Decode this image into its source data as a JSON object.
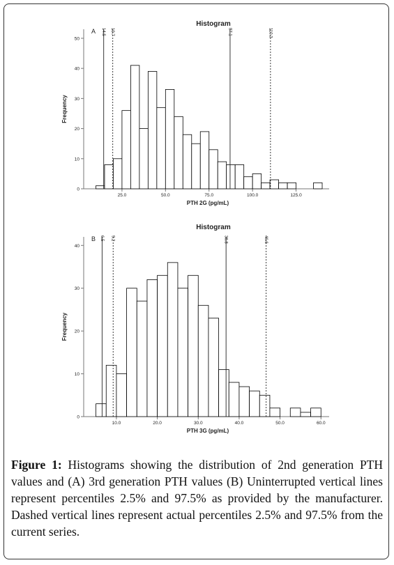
{
  "chart_data": [
    {
      "type": "histogram",
      "title": "Histogram",
      "panel": "A",
      "xlabel": "PTH 2G (pg/mL)",
      "ylabel": "Frequency",
      "bins": [
        10,
        15,
        20,
        25,
        30,
        35,
        40,
        45,
        50,
        55,
        60,
        65,
        70,
        75,
        80,
        85,
        90,
        95,
        100,
        105,
        110,
        115,
        120,
        125,
        130,
        135,
        140
      ],
      "counts": [
        1,
        8,
        10,
        26,
        41,
        20,
        39,
        27,
        33,
        24,
        18,
        15,
        19,
        13,
        9,
        8,
        8,
        4,
        5,
        2,
        3,
        2,
        2,
        0,
        0,
        2
      ],
      "color": "#ffffff",
      "edgecolor": "#000000",
      "xlim": [
        3,
        144
      ],
      "ylim": [
        0,
        53
      ],
      "xticks": [
        {
          "value": 25,
          "label": "25.0"
        },
        {
          "value": 50,
          "label": "50.0"
        },
        {
          "value": 75,
          "label": "75.0"
        },
        {
          "value": 100,
          "label": "100.0"
        },
        {
          "value": 125,
          "label": "125.0"
        }
      ],
      "yticks": [
        0,
        10,
        20,
        30,
        40,
        50
      ],
      "reference_lines": [
        {
          "value": 14.5,
          "style": "solid"
        },
        {
          "value": 19.7,
          "style": "dashed"
        },
        {
          "value": 87.1,
          "style": "solid"
        },
        {
          "value": 110.3,
          "style": "dashed"
        }
      ]
    },
    {
      "type": "histogram",
      "title": "Histogram",
      "panel": "B",
      "xlabel": "PTH 3G (pg/mL)",
      "ylabel": "Frequency",
      "bins": [
        5,
        7.5,
        10,
        12.5,
        15,
        17.5,
        20,
        22.5,
        25,
        27.5,
        30,
        32.5,
        35,
        37.5,
        40,
        42.5,
        45,
        47.5,
        50,
        52.5,
        55,
        57.5,
        60
      ],
      "counts": [
        3,
        12,
        10,
        30,
        27,
        32,
        33,
        36,
        30,
        33,
        26,
        23,
        11,
        8,
        7,
        6,
        5,
        2,
        0,
        2,
        1,
        2
      ],
      "color": "#ffffff",
      "edgecolor": "#000000",
      "xlim": [
        2,
        62
      ],
      "ylim": [
        0,
        42
      ],
      "xticks": [
        {
          "value": 10,
          "label": "10.0"
        },
        {
          "value": 20,
          "label": "20.0"
        },
        {
          "value": 30,
          "label": "30.0"
        },
        {
          "value": 40,
          "label": "40.0"
        },
        {
          "value": 50,
          "label": "50.0"
        },
        {
          "value": 60,
          "label": "60.0"
        }
      ],
      "yticks": [
        0,
        10,
        20,
        30,
        40
      ],
      "reference_lines": [
        {
          "value": 6.5,
          "style": "solid"
        },
        {
          "value": 9.2,
          "style": "dashed"
        },
        {
          "value": 36.8,
          "style": "solid"
        },
        {
          "value": 46.6,
          "style": "dashed"
        }
      ]
    }
  ],
  "caption": {
    "label": "Figure 1:",
    "text": "Histograms showing the distribution of 2nd generation PTH values and (A) 3rd generation PTH values (B) Uninterrupted vertical lines represent percentiles 2.5% and 97.5% as provided by the manufacturer. Dashed vertical lines represent actual percentiles 2.5% and 97.5% from the current series."
  }
}
